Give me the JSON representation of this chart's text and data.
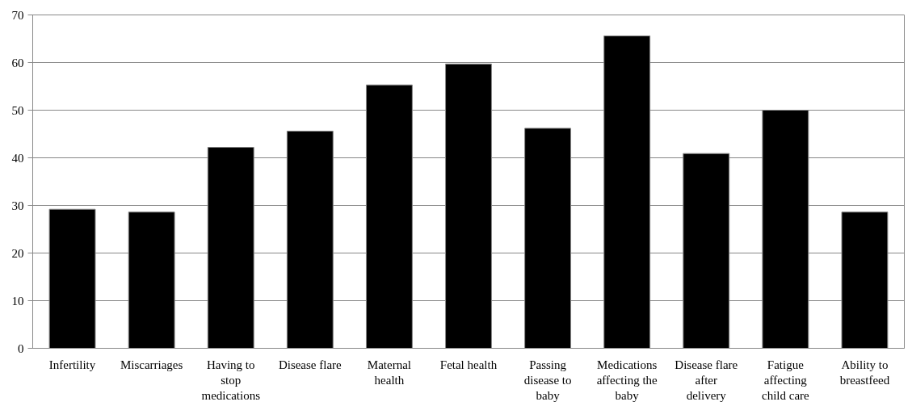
{
  "chart_data": {
    "type": "bar",
    "categories": [
      "Infertility",
      "Miscarriages",
      "Having to stop medications",
      "Disease flare",
      "Maternal health",
      "Fetal health",
      "Passing disease to baby",
      "Medications affecting the baby",
      "Disease flare after delivery",
      "Fatigue affecting child care",
      "Ability to breastfeed"
    ],
    "values": [
      29.2,
      28.6,
      42.2,
      45.6,
      55.3,
      59.7,
      46.2,
      65.6,
      40.9,
      50.0,
      28.6
    ],
    "color": "#000000",
    "ylim": [
      0,
      70
    ],
    "yticks": [
      0,
      10,
      20,
      30,
      40,
      50,
      60,
      70
    ],
    "grid": "y"
  }
}
